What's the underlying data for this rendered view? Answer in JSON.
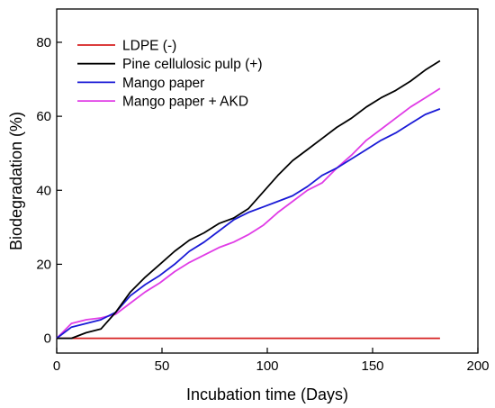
{
  "chart_data": {
    "type": "line",
    "title": "",
    "xlabel": "Incubation time (Days)",
    "ylabel": "Biodegradation (%)",
    "xlim": [
      0,
      200
    ],
    "ylim": [
      -4,
      89
    ],
    "xticks": [
      0,
      50,
      100,
      150,
      200
    ],
    "yticks": [
      0,
      20,
      40,
      60,
      80
    ],
    "grid": false,
    "legend_position": "top-left",
    "series": [
      {
        "name": "LDPE (-)",
        "color": "#d62020",
        "points": [
          [
            0,
            0
          ],
          [
            182,
            0
          ]
        ]
      },
      {
        "name": "Pine cellulosic pulp (+)",
        "color": "#000000",
        "points": [
          [
            0,
            0
          ],
          [
            7,
            0
          ],
          [
            14,
            1.5
          ],
          [
            21,
            2.5
          ],
          [
            28,
            7
          ],
          [
            35,
            12.5
          ],
          [
            42,
            16.5
          ],
          [
            49,
            20
          ],
          [
            56,
            23.5
          ],
          [
            63,
            26.5
          ],
          [
            70,
            28.5
          ],
          [
            77,
            31
          ],
          [
            84,
            32.5
          ],
          [
            91,
            35
          ],
          [
            98,
            39.5
          ],
          [
            105,
            44
          ],
          [
            112,
            48
          ],
          [
            119,
            51
          ],
          [
            126,
            54
          ],
          [
            133,
            57
          ],
          [
            140,
            59.5
          ],
          [
            147,
            62.5
          ],
          [
            154,
            65
          ],
          [
            161,
            67
          ],
          [
            168,
            69.5
          ],
          [
            175,
            72.5
          ],
          [
            182,
            75
          ]
        ]
      },
      {
        "name": "Mango paper",
        "color": "#1a1ad6",
        "points": [
          [
            0,
            0
          ],
          [
            7,
            3
          ],
          [
            14,
            4
          ],
          [
            21,
            5
          ],
          [
            28,
            7
          ],
          [
            35,
            11.5
          ],
          [
            42,
            14.5
          ],
          [
            49,
            17
          ],
          [
            56,
            20
          ],
          [
            63,
            23.5
          ],
          [
            70,
            26
          ],
          [
            77,
            29
          ],
          [
            84,
            32
          ],
          [
            91,
            34
          ],
          [
            98,
            35.5
          ],
          [
            105,
            37
          ],
          [
            112,
            38.5
          ],
          [
            119,
            41
          ],
          [
            126,
            44
          ],
          [
            133,
            46
          ],
          [
            140,
            48.5
          ],
          [
            147,
            51
          ],
          [
            154,
            53.5
          ],
          [
            161,
            55.5
          ],
          [
            168,
            58
          ],
          [
            175,
            60.5
          ],
          [
            182,
            62
          ]
        ]
      },
      {
        "name": "Mango paper + AKD",
        "color": "#e03ce6",
        "points": [
          [
            0,
            0
          ],
          [
            7,
            4
          ],
          [
            14,
            5
          ],
          [
            21,
            5.5
          ],
          [
            28,
            6.5
          ],
          [
            35,
            9.5
          ],
          [
            42,
            12.5
          ],
          [
            49,
            15
          ],
          [
            56,
            18
          ],
          [
            63,
            20.5
          ],
          [
            70,
            22.5
          ],
          [
            77,
            24.5
          ],
          [
            84,
            26
          ],
          [
            91,
            28
          ],
          [
            98,
            30.5
          ],
          [
            105,
            34
          ],
          [
            112,
            37
          ],
          [
            119,
            40
          ],
          [
            126,
            42
          ],
          [
            133,
            46
          ],
          [
            140,
            49.5
          ],
          [
            147,
            53.5
          ],
          [
            154,
            56.5
          ],
          [
            161,
            59.5
          ],
          [
            168,
            62.5
          ],
          [
            175,
            65
          ],
          [
            182,
            67.5
          ]
        ]
      }
    ]
  }
}
